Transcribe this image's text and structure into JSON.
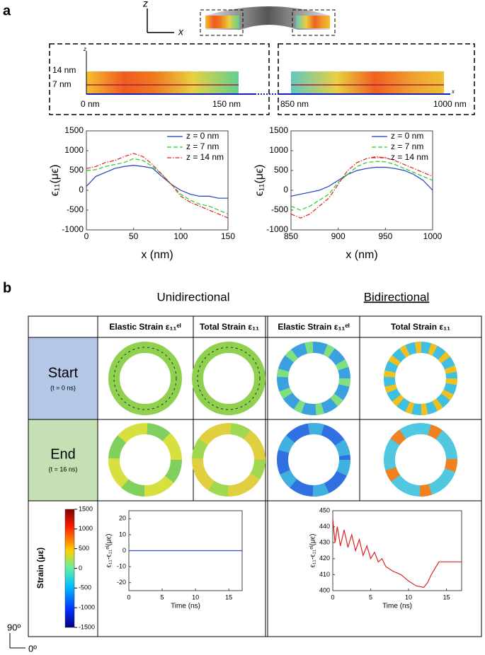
{
  "panel_a": {
    "label": "a",
    "axis_z": "z",
    "axis_x": "x",
    "inner_z": "z",
    "inner_x": "x",
    "layer_top": "14 nm",
    "layer_mid": "7 nm",
    "left_start": "0 nm",
    "left_end": "150 nm",
    "right_start": "850 nm",
    "right_end": "1000 nm"
  },
  "panel_b": {
    "label": "b",
    "group_uni": "Unidirectional",
    "group_bi": "Bidirectional",
    "col_headers": [
      "Elastic Strain ε₁₁ᵉˡ",
      "Total Strain ε₁₁",
      "Elastic Strain ε₁₁ᵉˡ",
      "Total Strain ε₁₁"
    ],
    "row_start": "Start",
    "row_start_time": "(t = 0 ns)",
    "row_end": "End",
    "row_end_time": "(t = 16 ns)",
    "colorbar": {
      "label": "Strain (με)",
      "ticks": [
        1500,
        1000,
        500,
        0,
        -500,
        -1000,
        -1500
      ],
      "lim": [
        -1500,
        1500
      ]
    },
    "orient_v": "90º",
    "orient_h": "0º"
  },
  "chart_data": [
    {
      "type": "line",
      "x_label": "x (nm)",
      "y_label": "ϵ₁₁(μϵ)",
      "x": [
        0,
        10,
        20,
        30,
        40,
        50,
        60,
        70,
        80,
        90,
        100,
        110,
        120,
        130,
        140,
        150
      ],
      "series": [
        {
          "name": "z = 0 nm",
          "color": "#1f3fbf",
          "dash": "solid",
          "values": [
            100,
            350,
            450,
            550,
            600,
            630,
            600,
            560,
            350,
            150,
            0,
            -100,
            -150,
            -150,
            -200,
            -200
          ]
        },
        {
          "name": "z = 7 nm",
          "color": "#22cc22",
          "dash": "dashed",
          "values": [
            500,
            520,
            600,
            650,
            700,
            800,
            750,
            600,
            400,
            150,
            -100,
            -250,
            -350,
            -400,
            -500,
            -600
          ]
        },
        {
          "name": "z = 14 nm",
          "color": "#e02020",
          "dash": "dashdot",
          "values": [
            550,
            600,
            700,
            750,
            850,
            930,
            850,
            650,
            400,
            150,
            -150,
            -300,
            -400,
            -500,
            -600,
            -700
          ]
        }
      ],
      "xlim": [
        0,
        150
      ],
      "xticks": [
        0,
        50,
        100,
        150
      ],
      "ylim": [
        -1000,
        1500
      ],
      "yticks": [
        -1000,
        -500,
        0,
        500,
        1000,
        1500
      ],
      "legend": "upper right"
    },
    {
      "type": "line",
      "x_label": "x (nm)",
      "y_label": "ϵ₁₁(μϵ)",
      "x": [
        850,
        860,
        870,
        880,
        890,
        900,
        910,
        920,
        930,
        940,
        950,
        960,
        970,
        980,
        990,
        1000
      ],
      "series": [
        {
          "name": "z = 0 nm",
          "color": "#1f3fbf",
          "dash": "solid",
          "values": [
            -150,
            -100,
            -50,
            0,
            100,
            250,
            400,
            500,
            550,
            580,
            580,
            550,
            500,
            400,
            250,
            0
          ]
        },
        {
          "name": "z = 7 nm",
          "color": "#22cc22",
          "dash": "dashed",
          "values": [
            -400,
            -500,
            -400,
            -250,
            -100,
            200,
            400,
            600,
            700,
            730,
            720,
            650,
            550,
            450,
            350,
            250
          ]
        },
        {
          "name": "z = 14 nm",
          "color": "#e02020",
          "dash": "dashdot",
          "values": [
            -600,
            -700,
            -600,
            -400,
            -200,
            150,
            500,
            700,
            800,
            850,
            820,
            750,
            650,
            550,
            450,
            350
          ]
        }
      ],
      "xlim": [
        850,
        1000
      ],
      "xticks": [
        850,
        900,
        950,
        1000
      ],
      "ylim": [
        -1000,
        1500
      ],
      "yticks": [
        -1000,
        -500,
        0,
        500,
        1000,
        1500
      ],
      "legend": "upper right"
    },
    {
      "type": "line",
      "x_label": "Time (ns)",
      "y_label": "ϵ₁₁-ϵ₁₁ᵉˡ(μϵ)",
      "x": [
        0,
        17
      ],
      "series": [
        {
          "color": "#3050d0",
          "dash": "solid",
          "values": [
            0,
            0
          ]
        }
      ],
      "xlim": [
        0,
        17
      ],
      "xticks": [
        0,
        5,
        10,
        15
      ],
      "ylim": [
        -25,
        25
      ],
      "yticks": [
        -20,
        -10,
        0,
        10,
        20
      ]
    },
    {
      "type": "line",
      "x_label": "Time (ns)",
      "y_label": "ϵ₁₁-ϵ₁₁ᵉˡ(μϵ)",
      "x": [
        0,
        0.3,
        0.6,
        1,
        1.5,
        2,
        2.5,
        3,
        3.5,
        4,
        4.5,
        5,
        5.5,
        6,
        6.5,
        7,
        8,
        9,
        10,
        11,
        12,
        12.5,
        13,
        13.5,
        14,
        17
      ],
      "series": [
        {
          "color": "#e02020",
          "dash": "solid",
          "values": [
            445,
            430,
            440,
            428,
            438,
            427,
            435,
            425,
            432,
            422,
            428,
            420,
            424,
            418,
            420,
            415,
            412,
            410,
            406,
            403,
            402,
            405,
            410,
            414,
            418,
            418
          ]
        }
      ],
      "xlim": [
        0,
        17
      ],
      "xticks": [
        0,
        5,
        10,
        15
      ],
      "ylim": [
        400,
        450
      ],
      "yticks": [
        400,
        410,
        420,
        430,
        440,
        450
      ]
    }
  ]
}
